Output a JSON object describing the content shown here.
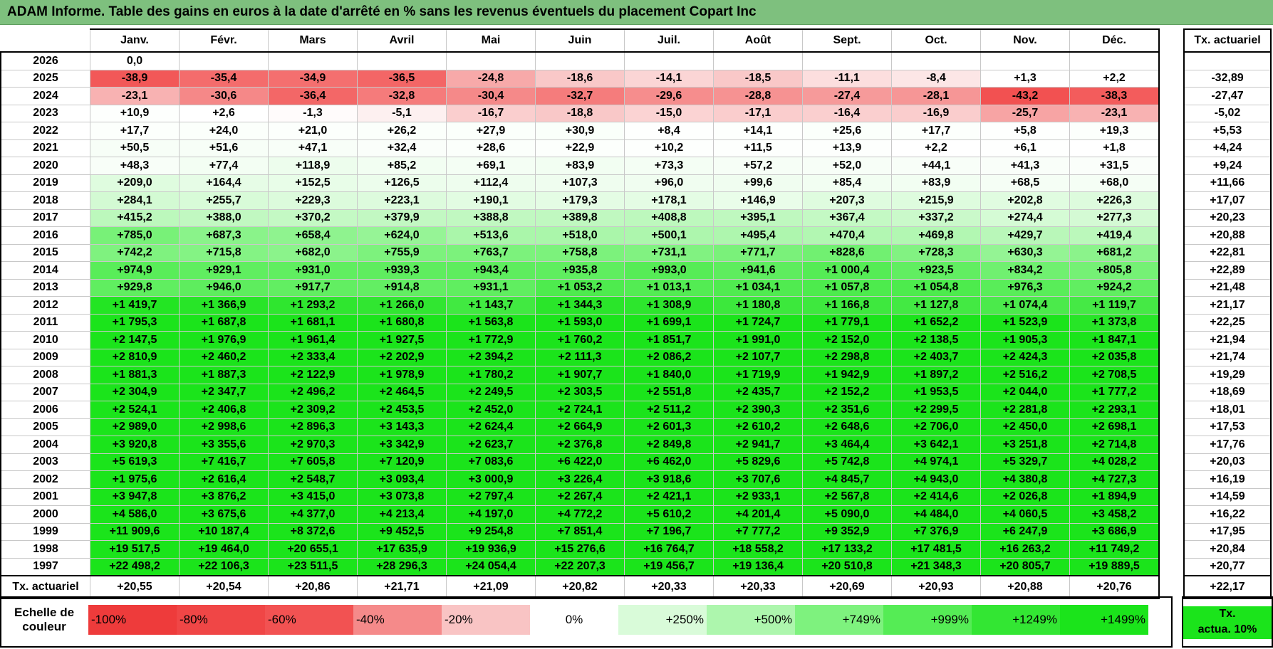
{
  "title": "ADAM Informe. Table des gains en euros à la date d'arrêté en % sans les revenus éventuels du placement Copart Inc",
  "months": [
    "Janv.",
    "Févr.",
    "Mars",
    "Avril",
    "Mai",
    "Juin",
    "Juil.",
    "Août",
    "Sept.",
    "Oct.",
    "Nov.",
    "Déc."
  ],
  "side_header": "Tx. actuariel",
  "rows": [
    {
      "year": "2026",
      "values": [
        "0,0",
        "",
        "",
        "",
        "",
        "",
        "",
        "",
        "",
        "",
        "",
        ""
      ],
      "tx": ""
    },
    {
      "year": "2025",
      "values": [
        "-38,9",
        "-35,4",
        "-34,9",
        "-36,5",
        "-24,8",
        "-18,6",
        "-14,1",
        "-18,5",
        "-11,1",
        "-8,4",
        "+1,3",
        "+2,2"
      ],
      "tx": "-32,89"
    },
    {
      "year": "2024",
      "values": [
        "-23,1",
        "-30,6",
        "-36,4",
        "-32,8",
        "-30,4",
        "-32,7",
        "-29,6",
        "-28,8",
        "-27,4",
        "-28,1",
        "-43,2",
        "-38,3"
      ],
      "tx": "-27,47"
    },
    {
      "year": "2023",
      "values": [
        "+10,9",
        "+2,6",
        "-1,3",
        "-5,1",
        "-16,7",
        "-18,8",
        "-15,0",
        "-17,1",
        "-16,4",
        "-16,9",
        "-25,7",
        "-23,1"
      ],
      "tx": "-5,02"
    },
    {
      "year": "2022",
      "values": [
        "+17,7",
        "+24,0",
        "+21,0",
        "+26,2",
        "+27,9",
        "+30,9",
        "+8,4",
        "+14,1",
        "+25,6",
        "+17,7",
        "+5,8",
        "+19,3"
      ],
      "tx": "+5,53"
    },
    {
      "year": "2021",
      "values": [
        "+50,5",
        "+51,6",
        "+47,1",
        "+32,4",
        "+28,6",
        "+22,9",
        "+10,2",
        "+11,5",
        "+13,9",
        "+2,2",
        "+6,1",
        "+1,8"
      ],
      "tx": "+4,24"
    },
    {
      "year": "2020",
      "values": [
        "+48,3",
        "+77,4",
        "+118,9",
        "+85,2",
        "+69,1",
        "+83,9",
        "+73,3",
        "+57,2",
        "+52,0",
        "+44,1",
        "+41,3",
        "+31,5"
      ],
      "tx": "+9,24"
    },
    {
      "year": "2019",
      "values": [
        "+209,0",
        "+164,4",
        "+152,5",
        "+126,5",
        "+112,4",
        "+107,3",
        "+96,0",
        "+99,6",
        "+85,4",
        "+83,9",
        "+68,5",
        "+68,0"
      ],
      "tx": "+11,66"
    },
    {
      "year": "2018",
      "values": [
        "+284,1",
        "+255,7",
        "+229,3",
        "+223,1",
        "+190,1",
        "+179,3",
        "+178,1",
        "+146,9",
        "+207,3",
        "+215,9",
        "+202,8",
        "+226,3"
      ],
      "tx": "+17,07"
    },
    {
      "year": "2017",
      "values": [
        "+415,2",
        "+388,0",
        "+370,2",
        "+379,9",
        "+388,8",
        "+389,8",
        "+408,8",
        "+395,1",
        "+367,4",
        "+337,2",
        "+274,4",
        "+277,3"
      ],
      "tx": "+20,23"
    },
    {
      "year": "2016",
      "values": [
        "+785,0",
        "+687,3",
        "+658,4",
        "+624,0",
        "+513,6",
        "+518,0",
        "+500,1",
        "+495,4",
        "+470,4",
        "+469,8",
        "+429,7",
        "+419,4"
      ],
      "tx": "+20,88"
    },
    {
      "year": "2015",
      "values": [
        "+742,2",
        "+715,8",
        "+682,0",
        "+755,9",
        "+763,7",
        "+758,8",
        "+731,1",
        "+771,7",
        "+828,6",
        "+728,3",
        "+630,3",
        "+681,2"
      ],
      "tx": "+22,81"
    },
    {
      "year": "2014",
      "values": [
        "+974,9",
        "+929,1",
        "+931,0",
        "+939,3",
        "+943,4",
        "+935,8",
        "+993,0",
        "+941,6",
        "+1 000,4",
        "+923,5",
        "+834,2",
        "+805,8"
      ],
      "tx": "+22,89"
    },
    {
      "year": "2013",
      "values": [
        "+929,8",
        "+946,0",
        "+917,7",
        "+914,8",
        "+931,1",
        "+1 053,2",
        "+1 013,1",
        "+1 034,1",
        "+1 057,8",
        "+1 054,8",
        "+976,3",
        "+924,2"
      ],
      "tx": "+21,48"
    },
    {
      "year": "2012",
      "values": [
        "+1 419,7",
        "+1 366,9",
        "+1 293,2",
        "+1 266,0",
        "+1 143,7",
        "+1 344,3",
        "+1 308,9",
        "+1 180,8",
        "+1 166,8",
        "+1 127,8",
        "+1 074,4",
        "+1 119,7"
      ],
      "tx": "+21,17"
    },
    {
      "year": "2011",
      "values": [
        "+1 795,3",
        "+1 687,8",
        "+1 681,1",
        "+1 680,8",
        "+1 563,8",
        "+1 593,0",
        "+1 699,1",
        "+1 724,7",
        "+1 779,1",
        "+1 652,2",
        "+1 523,9",
        "+1 373,8"
      ],
      "tx": "+22,25"
    },
    {
      "year": "2010",
      "values": [
        "+2 147,5",
        "+1 976,9",
        "+1 961,4",
        "+1 927,5",
        "+1 772,9",
        "+1 760,2",
        "+1 851,7",
        "+1 991,0",
        "+2 152,0",
        "+2 138,5",
        "+1 905,3",
        "+1 847,1"
      ],
      "tx": "+21,94"
    },
    {
      "year": "2009",
      "values": [
        "+2 810,9",
        "+2 460,2",
        "+2 333,4",
        "+2 202,9",
        "+2 394,2",
        "+2 111,3",
        "+2 086,2",
        "+2 107,7",
        "+2 298,8",
        "+2 403,7",
        "+2 424,3",
        "+2 035,8"
      ],
      "tx": "+21,74"
    },
    {
      "year": "2008",
      "values": [
        "+1 881,3",
        "+1 887,3",
        "+2 122,9",
        "+1 978,9",
        "+1 780,2",
        "+1 907,7",
        "+1 840,0",
        "+1 719,9",
        "+1 942,9",
        "+1 897,2",
        "+2 516,2",
        "+2 708,5"
      ],
      "tx": "+19,29"
    },
    {
      "year": "2007",
      "values": [
        "+2 304,9",
        "+2 347,7",
        "+2 496,2",
        "+2 464,5",
        "+2 249,5",
        "+2 303,5",
        "+2 551,8",
        "+2 435,7",
        "+2 152,2",
        "+1 953,5",
        "+2 044,0",
        "+1 777,2"
      ],
      "tx": "+18,69"
    },
    {
      "year": "2006",
      "values": [
        "+2 524,1",
        "+2 406,8",
        "+2 309,2",
        "+2 453,5",
        "+2 452,0",
        "+2 724,1",
        "+2 511,2",
        "+2 390,3",
        "+2 351,6",
        "+2 299,5",
        "+2 281,8",
        "+2 293,1"
      ],
      "tx": "+18,01"
    },
    {
      "year": "2005",
      "values": [
        "+2 989,0",
        "+2 998,6",
        "+2 896,3",
        "+3 143,3",
        "+2 624,4",
        "+2 664,9",
        "+2 601,3",
        "+2 610,2",
        "+2 648,6",
        "+2 706,0",
        "+2 450,0",
        "+2 698,1"
      ],
      "tx": "+17,53"
    },
    {
      "year": "2004",
      "values": [
        "+3 920,8",
        "+3 355,6",
        "+2 970,3",
        "+3 342,9",
        "+2 623,7",
        "+2 376,8",
        "+2 849,8",
        "+2 941,7",
        "+3 464,4",
        "+3 642,1",
        "+3 251,8",
        "+2 714,8"
      ],
      "tx": "+17,76"
    },
    {
      "year": "2003",
      "values": [
        "+5 619,3",
        "+7 416,7",
        "+7 605,8",
        "+7 120,9",
        "+7 083,6",
        "+6 422,0",
        "+6 462,0",
        "+5 829,6",
        "+5 742,8",
        "+4 974,1",
        "+5 329,7",
        "+4 028,2"
      ],
      "tx": "+20,03"
    },
    {
      "year": "2002",
      "values": [
        "+1 975,6",
        "+2 616,4",
        "+2 548,7",
        "+3 093,4",
        "+3 000,9",
        "+3 226,4",
        "+3 918,6",
        "+3 707,6",
        "+4 845,7",
        "+4 943,0",
        "+4 380,8",
        "+4 727,3"
      ],
      "tx": "+16,19"
    },
    {
      "year": "2001",
      "values": [
        "+3 947,8",
        "+3 876,2",
        "+3 415,0",
        "+3 073,8",
        "+2 797,4",
        "+2 267,4",
        "+2 421,1",
        "+2 933,1",
        "+2 567,8",
        "+2 414,6",
        "+2 026,8",
        "+1 894,9"
      ],
      "tx": "+14,59"
    },
    {
      "year": "2000",
      "values": [
        "+4 586,0",
        "+3 675,6",
        "+4 377,0",
        "+4 213,4",
        "+4 197,0",
        "+4 772,2",
        "+5 610,2",
        "+4 201,4",
        "+5 090,0",
        "+4 484,0",
        "+4 060,5",
        "+3 458,2"
      ],
      "tx": "+16,22"
    },
    {
      "year": "1999",
      "values": [
        "+11 909,6",
        "+10 187,4",
        "+8 372,6",
        "+9 452,5",
        "+9 254,8",
        "+7 851,4",
        "+7 196,7",
        "+7 777,2",
        "+9 352,9",
        "+7 376,9",
        "+6 247,9",
        "+3 686,9"
      ],
      "tx": "+17,95"
    },
    {
      "year": "1998",
      "values": [
        "+19 517,5",
        "+19 464,0",
        "+20 655,1",
        "+17 635,9",
        "+19 936,9",
        "+15 276,6",
        "+16 764,7",
        "+18 558,2",
        "+17 133,2",
        "+17 481,5",
        "+16 263,2",
        "+11 749,2"
      ],
      "tx": "+20,84"
    },
    {
      "year": "1997",
      "values": [
        "+22 498,2",
        "+22 106,3",
        "+23 511,5",
        "+28 296,3",
        "+24 054,4",
        "+22 207,3",
        "+19 456,7",
        "+19 136,4",
        "+20 510,8",
        "+21 348,3",
        "+20 805,7",
        "+19 889,5"
      ],
      "tx": "+20,77"
    }
  ],
  "footer": {
    "label": "Tx. actuariel",
    "values": [
      "+20,55",
      "+20,54",
      "+20,86",
      "+21,71",
      "+21,09",
      "+20,82",
      "+20,33",
      "+20,33",
      "+20,69",
      "+20,93",
      "+20,88",
      "+20,76"
    ],
    "tx": "+22,17"
  },
  "scale": {
    "label_line1": "Echelle de",
    "label_line2": "couleur",
    "swatches": [
      {
        "text": "-100%",
        "color": "#ee3b3b",
        "align": "left"
      },
      {
        "text": "-80%",
        "color": "#f04646",
        "align": "left"
      },
      {
        "text": "-60%",
        "color": "#f25252",
        "align": "left"
      },
      {
        "text": "-40%",
        "color": "#f58a8a",
        "align": "left"
      },
      {
        "text": "-20%",
        "color": "#f9c4c4",
        "align": "left"
      },
      {
        "text": "0%",
        "color": "#ffffff",
        "align": "center"
      },
      {
        "text": "+250%",
        "color": "#d9fbd9",
        "align": "right"
      },
      {
        "text": "+500%",
        "color": "#adf6ad",
        "align": "right"
      },
      {
        "text": "+749%",
        "color": "#7ef27e",
        "align": "right"
      },
      {
        "text": "+999%",
        "color": "#55ec55",
        "align": "right"
      },
      {
        "text": "+1249%",
        "color": "#33e633",
        "align": "right"
      },
      {
        "text": "+1499%",
        "color": "#1be41b",
        "align": "right"
      }
    ],
    "tx_line1": "Tx.",
    "tx_line2": "actua. 10%"
  },
  "colors": {
    "title_bg": "#7ec07e",
    "tx_swatch": "#1be41b"
  }
}
